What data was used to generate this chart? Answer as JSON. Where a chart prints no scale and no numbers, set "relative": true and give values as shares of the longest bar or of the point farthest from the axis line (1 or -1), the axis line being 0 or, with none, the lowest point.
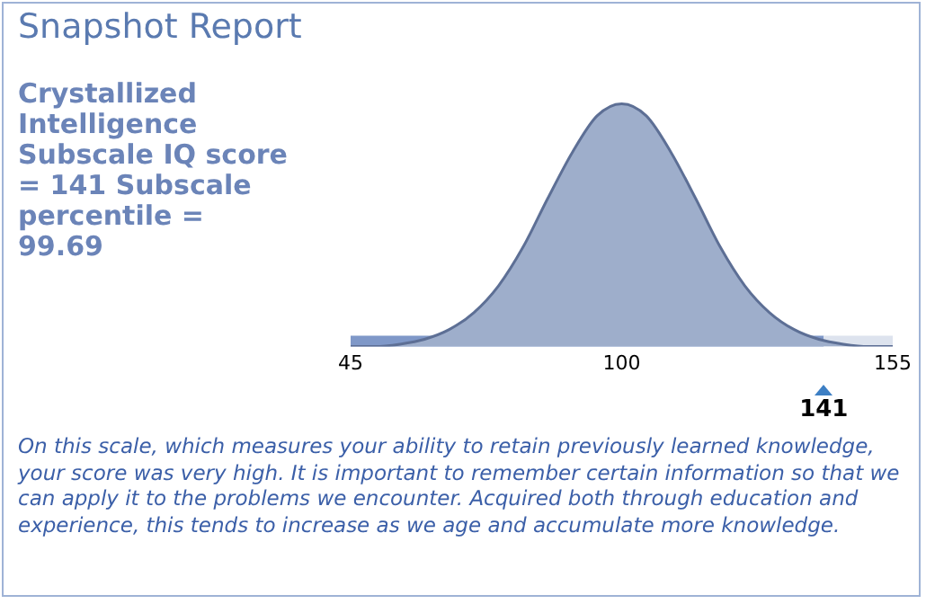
{
  "chart_data": {
    "type": "area",
    "title": "Snapshot Report",
    "subtitle": "Crystallized Intelligence Subscale IQ score = 141 Subscale percentile = 99.69",
    "x": [
      45,
      50,
      55,
      60,
      65,
      70,
      75,
      80,
      85,
      90,
      95,
      100,
      105,
      110,
      115,
      120,
      125,
      130,
      135,
      140,
      145,
      150,
      155
    ],
    "relative": true,
    "series": [
      {
        "color": "#9eaecb",
        "values": [
          0,
          0,
          0.01,
          0.03,
          0.07,
          0.14,
          0.25,
          0.41,
          0.61,
          0.8,
          0.95,
          1,
          0.95,
          0.8,
          0.61,
          0.41,
          0.25,
          0.14,
          0.07,
          0.03,
          0.01,
          0,
          0
        ]
      }
    ],
    "xlim": [
      45,
      155
    ],
    "xticks": [
      45,
      100,
      155
    ],
    "bands": [
      {
        "axis": "x",
        "from": 45,
        "to": 141,
        "color": "#7f98c8",
        "label": "141"
      },
      {
        "axis": "x",
        "from": 141,
        "to": 155,
        "color": "#dde3ee"
      }
    ],
    "annotations": [
      "On this scale, which measures your ability to retain previously learned knowledge, your score was very high. It is important to remember certain information so that we can apply it to the problems we encounter. Acquired both through education and experience, this tends to increase as we age and accumulate more knowledge."
    ],
    "grid": false,
    "legend": false
  }
}
